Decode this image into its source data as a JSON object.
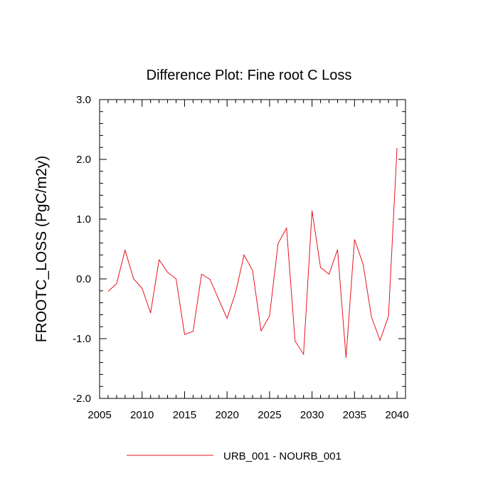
{
  "chart_data": {
    "type": "line",
    "title": "Difference Plot: Fine root C Loss",
    "xlabel": "",
    "ylabel": "FROOTC_LOSS  (PgC/m2y)",
    "xlim": [
      2005,
      2041
    ],
    "ylim": [
      -2.0,
      3.0
    ],
    "x_ticks": [
      2005,
      2010,
      2015,
      2020,
      2025,
      2030,
      2035,
      2040
    ],
    "x_tick_labels": [
      "2005",
      "2010",
      "2015",
      "2020",
      "2025",
      "2030",
      "2035",
      "2040"
    ],
    "y_ticks": [
      -2.0,
      -1.0,
      0.0,
      1.0,
      2.0,
      3.0
    ],
    "y_tick_labels": [
      "-2.0",
      "-1.0",
      "0.0",
      "1.0",
      "2.0",
      "3.0"
    ],
    "grid": false,
    "legend_position": "bottom",
    "x": [
      2006,
      2007,
      2008,
      2009,
      2010,
      2011,
      2012,
      2013,
      2014,
      2015,
      2016,
      2017,
      2018,
      2019,
      2020,
      2021,
      2022,
      2023,
      2024,
      2025,
      2026,
      2027,
      2028,
      2029,
      2030,
      2031,
      2032,
      2033,
      2034,
      2035,
      2036,
      2037,
      2038,
      2039,
      2040
    ],
    "series": [
      {
        "name": "URB_001 - NOURB_001",
        "color": "#e8141e",
        "values": [
          -0.21,
          -0.08,
          0.48,
          0.0,
          -0.16,
          -0.57,
          0.32,
          0.11,
          0.0,
          -0.93,
          -0.88,
          0.08,
          -0.01,
          -0.34,
          -0.66,
          -0.23,
          0.4,
          0.14,
          -0.87,
          -0.62,
          0.59,
          0.85,
          -1.04,
          -1.26,
          1.14,
          0.19,
          0.08,
          0.49,
          -1.32,
          0.66,
          0.25,
          -0.64,
          -1.03,
          -0.62,
          2.19
        ]
      }
    ]
  }
}
